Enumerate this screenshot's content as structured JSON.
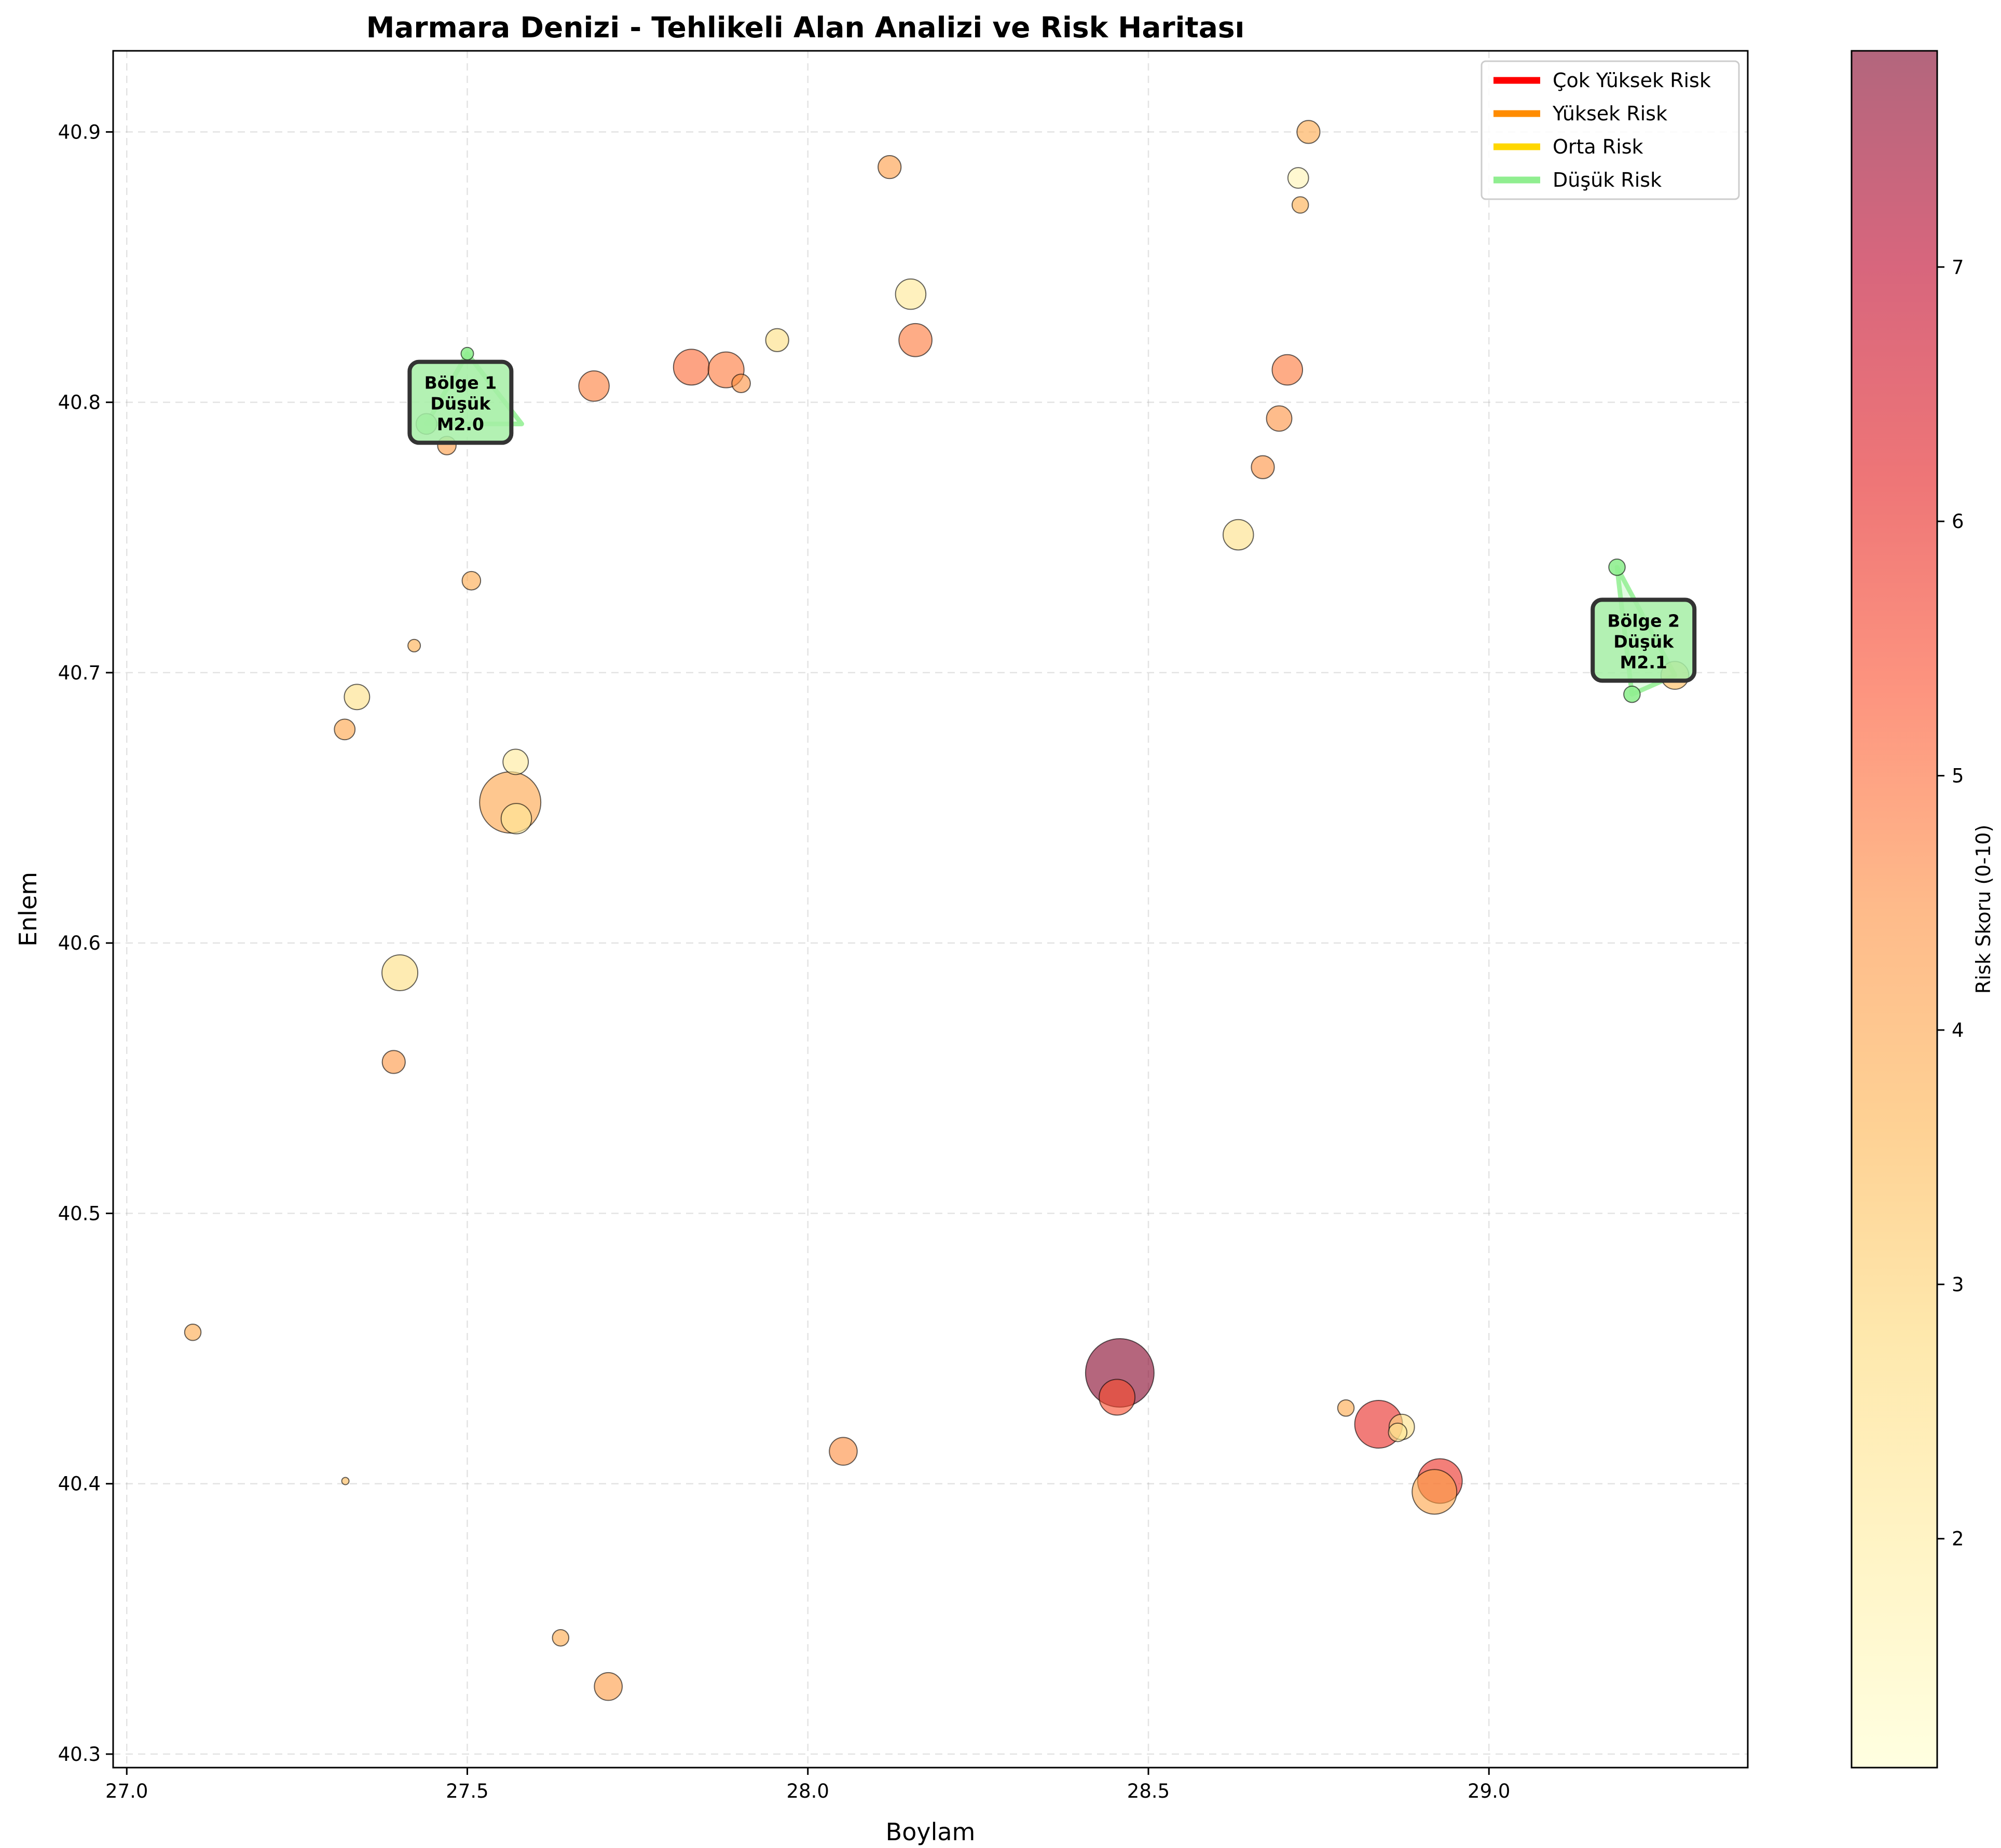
{
  "chart_data": {
    "type": "scatter",
    "title": "Marmara Denizi - Tehlikeli Alan Analizi ve Risk Haritası",
    "xlabel": "Boylam",
    "ylabel": "Enlem",
    "xlim": [
      26.98,
      29.38
    ],
    "ylim": [
      40.295,
      40.93
    ],
    "xticks": [
      "27.0",
      "27.5",
      "28.0",
      "28.5",
      "29.0"
    ],
    "yticks": [
      "40.3",
      "40.4",
      "40.5",
      "40.6",
      "40.7",
      "40.8",
      "40.9"
    ],
    "grid": true,
    "legend_position": "top-right",
    "legend": [
      {
        "label": "Çok Yüksek Risk",
        "color": "#ff0000"
      },
      {
        "label": "Yüksek Risk",
        "color": "#ff8c00"
      },
      {
        "label": "Orta Risk",
        "color": "#ffd700"
      },
      {
        "label": "Düşük Risk",
        "color": "#90ee90"
      }
    ],
    "colorbar": {
      "label": "Risk Skoru (0-10)",
      "min": 1.1,
      "max": 7.85,
      "ticks": [
        "2",
        "3",
        "4",
        "5",
        "6",
        "7"
      ],
      "colormap": "YlOrRd-alpha"
    },
    "points": [
      {
        "x": 28.458,
        "y": 40.441,
        "risk": 7.8,
        "magnitude": 4.0
      },
      {
        "x": 28.454,
        "y": 40.432,
        "risk": 5.4,
        "magnitude": 3.0
      },
      {
        "x": 28.838,
        "y": 40.422,
        "risk": 6.0,
        "magnitude": 3.4
      },
      {
        "x": 28.928,
        "y": 40.401,
        "risk": 5.9,
        "magnitude": 3.3
      },
      {
        "x": 28.92,
        "y": 40.397,
        "risk": 4.0,
        "magnitude": 3.3
      },
      {
        "x": 28.872,
        "y": 40.421,
        "risk": 2.5,
        "magnitude": 2.6
      },
      {
        "x": 28.866,
        "y": 40.419,
        "risk": 2.2,
        "magnitude": 2.3
      },
      {
        "x": 28.79,
        "y": 40.428,
        "risk": 3.9,
        "magnitude": 2.2
      },
      {
        "x": 28.052,
        "y": 40.412,
        "risk": 4.5,
        "magnitude": 2.7
      },
      {
        "x": 27.321,
        "y": 40.401,
        "risk": 3.5,
        "magnitude": 1.7
      },
      {
        "x": 27.637,
        "y": 40.343,
        "risk": 3.9,
        "magnitude": 2.2
      },
      {
        "x": 27.707,
        "y": 40.325,
        "risk": 4.2,
        "magnitude": 2.7
      },
      {
        "x": 27.097,
        "y": 40.456,
        "risk": 3.9,
        "magnitude": 2.2
      },
      {
        "x": 27.392,
        "y": 40.556,
        "risk": 4.3,
        "magnitude": 2.5
      },
      {
        "x": 27.401,
        "y": 40.589,
        "risk": 2.6,
        "magnitude": 3.0
      },
      {
        "x": 27.563,
        "y": 40.652,
        "risk": 4.0,
        "magnitude": 3.8
      },
      {
        "x": 27.572,
        "y": 40.646,
        "risk": 2.1,
        "magnitude": 2.8
      },
      {
        "x": 27.571,
        "y": 40.667,
        "risk": 2.1,
        "magnitude": 2.6
      },
      {
        "x": 27.32,
        "y": 40.679,
        "risk": 4.0,
        "magnitude": 2.4
      },
      {
        "x": 27.338,
        "y": 40.691,
        "risk": 2.5,
        "magnitude": 2.6
      },
      {
        "x": 27.422,
        "y": 40.71,
        "risk": 3.8,
        "magnitude": 2.0
      },
      {
        "x": 27.506,
        "y": 40.734,
        "risk": 3.9,
        "magnitude": 2.3
      },
      {
        "x": 27.5,
        "y": 40.818,
        "risk": 1.6,
        "magnitude": 2.0,
        "zone": true
      },
      {
        "x": 27.44,
        "y": 40.792,
        "risk": 1.6,
        "magnitude": 2.4,
        "zone": true
      },
      {
        "x": 27.47,
        "y": 40.784,
        "risk": 4.2,
        "magnitude": 2.3
      },
      {
        "x": 27.686,
        "y": 40.806,
        "risk": 4.7,
        "magnitude": 2.8
      },
      {
        "x": 27.829,
        "y": 40.813,
        "risk": 5.0,
        "magnitude": 3.0
      },
      {
        "x": 27.88,
        "y": 40.812,
        "risk": 4.8,
        "magnitude": 3.0
      },
      {
        "x": 27.902,
        "y": 40.807,
        "risk": 4.4,
        "magnitude": 2.3
      },
      {
        "x": 27.955,
        "y": 40.823,
        "risk": 2.6,
        "magnitude": 2.5
      },
      {
        "x": 28.12,
        "y": 40.887,
        "risk": 4.2,
        "magnitude": 2.5
      },
      {
        "x": 28.151,
        "y": 40.84,
        "risk": 2.2,
        "magnitude": 2.8
      },
      {
        "x": 28.158,
        "y": 40.823,
        "risk": 4.8,
        "magnitude": 2.9
      },
      {
        "x": 28.735,
        "y": 40.9,
        "risk": 3.9,
        "magnitude": 2.5
      },
      {
        "x": 28.72,
        "y": 40.883,
        "risk": 1.6,
        "magnitude": 2.4
      },
      {
        "x": 28.723,
        "y": 40.873,
        "risk": 3.8,
        "magnitude": 2.2
      },
      {
        "x": 28.704,
        "y": 40.812,
        "risk": 4.8,
        "magnitude": 2.8
      },
      {
        "x": 28.692,
        "y": 40.794,
        "risk": 4.4,
        "magnitude": 2.6
      },
      {
        "x": 28.668,
        "y": 40.776,
        "risk": 4.4,
        "magnitude": 2.5
      },
      {
        "x": 28.632,
        "y": 40.751,
        "risk": 2.5,
        "magnitude": 2.8
      },
      {
        "x": 29.188,
        "y": 40.739,
        "risk": 1.8,
        "magnitude": 2.2,
        "zone": true
      },
      {
        "x": 29.21,
        "y": 40.692,
        "risk": 2.0,
        "magnitude": 2.2,
        "zone": true
      },
      {
        "x": 29.273,
        "y": 40.699,
        "risk": 3.5,
        "magnitude": 2.7
      }
    ],
    "zones": [
      {
        "label_line1": "Bölge 1",
        "label_line2": "Düşük",
        "label_line3": "M2.0",
        "risk_level": "Düşük",
        "color": "#90ee90",
        "center": {
          "x": 27.49,
          "y": 40.8
        },
        "box_bg": "#a6eea6",
        "polygon": [
          [
            27.5,
            40.818
          ],
          [
            27.44,
            40.792
          ],
          [
            27.58,
            40.792
          ]
        ]
      },
      {
        "label_line1": "Bölge 2",
        "label_line2": "Düşük",
        "label_line3": "M2.1",
        "risk_level": "Düşük",
        "color": "#90ee90",
        "center": {
          "x": 29.227,
          "y": 40.712
        },
        "box_bg": "#a6eea6",
        "polygon": [
          [
            29.188,
            40.739
          ],
          [
            29.21,
            40.692
          ],
          [
            29.273,
            40.699
          ]
        ]
      }
    ]
  }
}
